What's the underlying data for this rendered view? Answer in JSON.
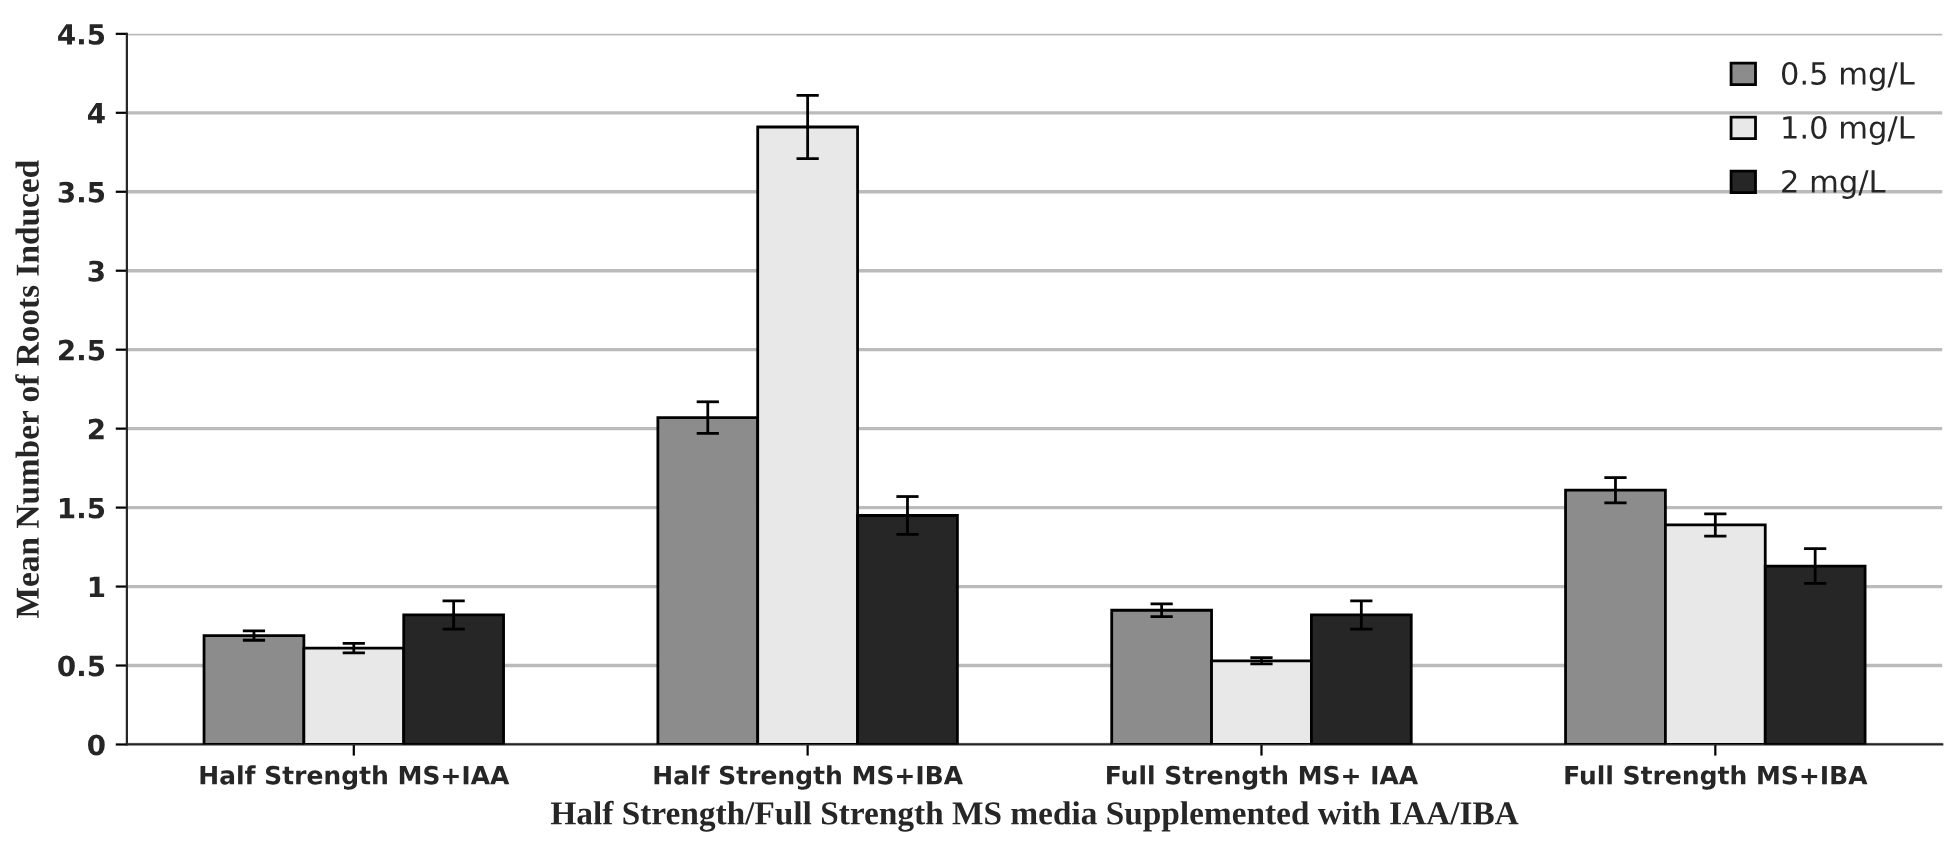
{
  "chart_data": {
    "type": "bar",
    "xlabel": "Half Strength/Full Strength MS media Supplemented with IAA/IBA",
    "ylabel": "Mean Number of Roots Induced",
    "categories": [
      "Half Strength MS+IAA",
      "Half Strength MS+IBA",
      "Full Strength MS+ IAA",
      "Full Strength MS+IBA"
    ],
    "series": [
      {
        "name": "0.5 mg/L",
        "color": "#8c8c8c",
        "values": [
          0.69,
          2.07,
          0.85,
          1.61
        ],
        "errors": [
          0.03,
          0.1,
          0.04,
          0.08
        ]
      },
      {
        "name": "1.0 mg/L",
        "color": "#e8e8e8",
        "values": [
          0.61,
          3.91,
          0.53,
          1.39
        ],
        "errors": [
          0.03,
          0.2,
          0.02,
          0.07
        ]
      },
      {
        "name": "2 mg/L",
        "color": "#262626",
        "values": [
          0.82,
          1.45,
          0.82,
          1.13
        ],
        "errors": [
          0.09,
          0.12,
          0.09,
          0.11
        ]
      }
    ],
    "ylim": [
      0,
      4.5
    ],
    "yticks": [
      0,
      0.5,
      1,
      1.5,
      2,
      2.5,
      3,
      3.5,
      4,
      4.5
    ],
    "grid": "y",
    "legend": "top right"
  }
}
